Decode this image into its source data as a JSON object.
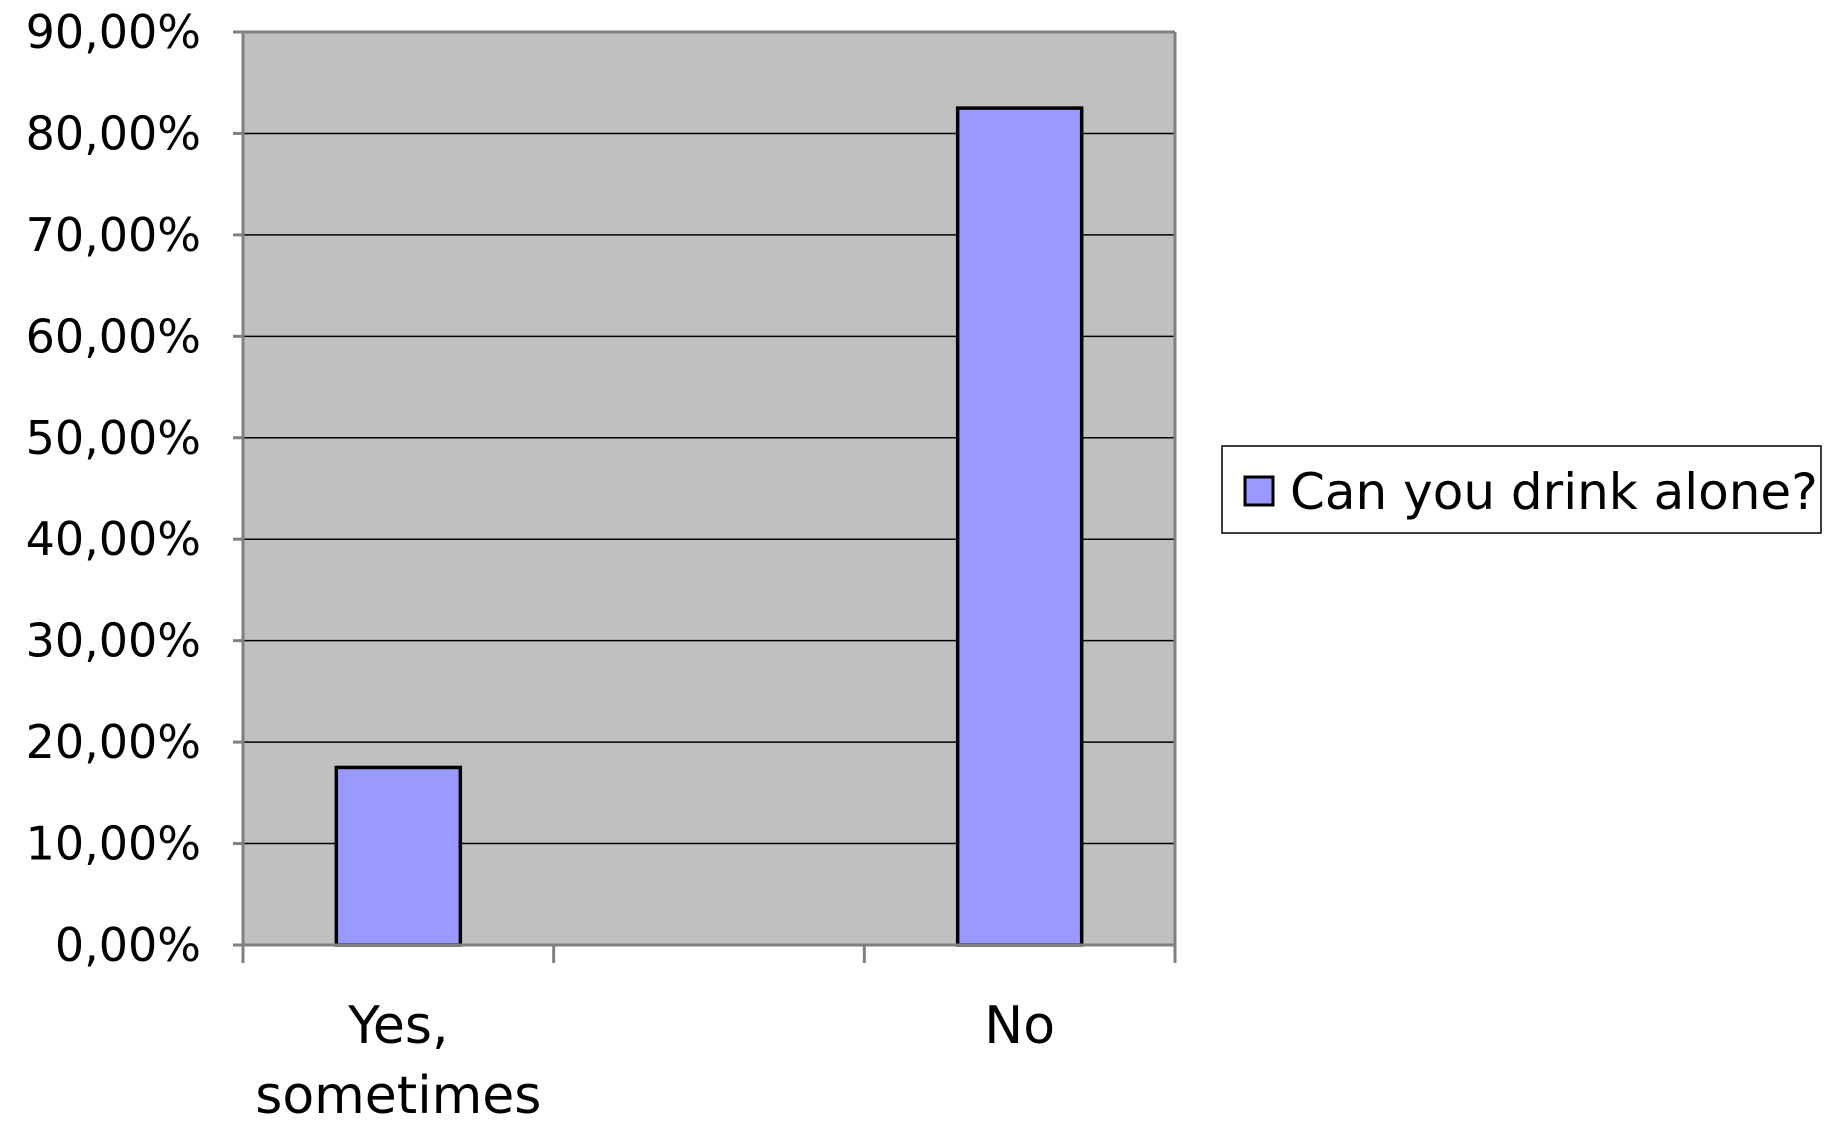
{
  "chart_data": {
    "type": "bar",
    "categories": [
      [
        "Yes,",
        "sometimes"
      ],
      [
        "No"
      ]
    ],
    "series": [
      {
        "name": "Can you drink alone?",
        "values": [
          17.5,
          82.5
        ],
        "color": "#9999ff"
      }
    ],
    "ylim": [
      0,
      90
    ],
    "yticks": [
      {
        "value": 0,
        "label": "0,00%"
      },
      {
        "value": 10,
        "label": "10,00%"
      },
      {
        "value": 20,
        "label": "20,00%"
      },
      {
        "value": 30,
        "label": "30,00%"
      },
      {
        "value": 40,
        "label": "40,00%"
      },
      {
        "value": 50,
        "label": "50,00%"
      },
      {
        "value": 60,
        "label": "60,00%"
      },
      {
        "value": 70,
        "label": "70,00%"
      },
      {
        "value": 80,
        "label": "80,00%"
      },
      {
        "value": 90,
        "label": "90,00%"
      }
    ],
    "plot_background": "#c0c0c0",
    "grid": true,
    "legend": {
      "position": "right"
    }
  }
}
